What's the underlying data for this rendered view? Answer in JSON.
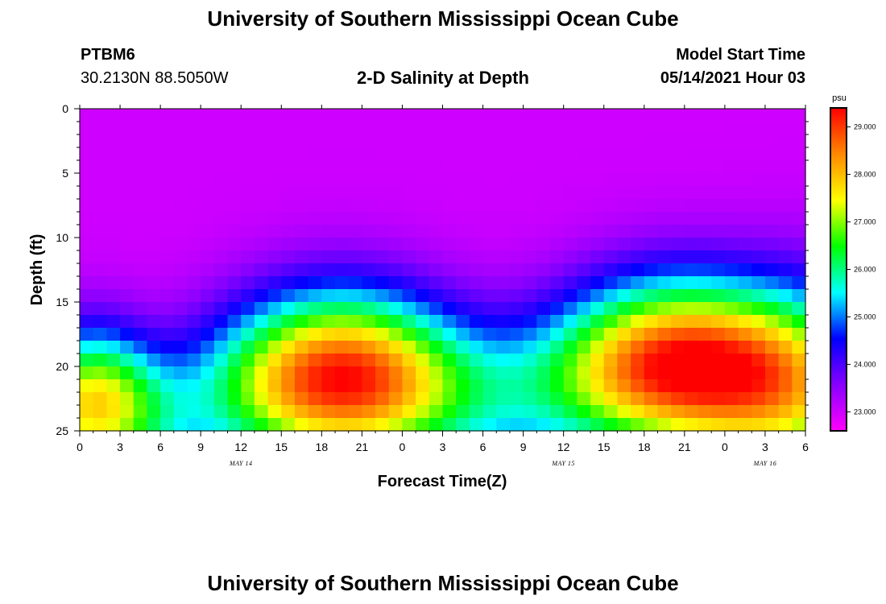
{
  "page": {
    "title_top": "University of Southern Mississippi Ocean Cube",
    "title_bottom": "University of Southern Mississippi Ocean Cube",
    "station_id": "PTBM6",
    "station_coords": "30.2130N  88.5050W",
    "plot_title": "2-D Salinity at Depth",
    "model_start_label": "Model Start Time",
    "model_start_value": "05/14/2021 Hour 03"
  },
  "chart_data": {
    "type": "heatmap",
    "title": "2-D Salinity at Depth",
    "xlabel": "Forecast Time(Z)",
    "ylabel": "Depth (ft)",
    "x_ticks": [
      "0",
      "3",
      "6",
      "9",
      "12",
      "15",
      "18",
      "21",
      "0",
      "3",
      "6",
      "9",
      "12",
      "15",
      "18",
      "21",
      "0",
      "3",
      "6"
    ],
    "x_range_hours": [
      0,
      54
    ],
    "date_labels": [
      {
        "text": "MAY 14",
        "hour": 12
      },
      {
        "text": "MAY 15",
        "hour": 36
      },
      {
        "text": "MAY 16",
        "hour": 51
      }
    ],
    "y_ticks": [
      "0",
      "5",
      "10",
      "15",
      "20",
      "25"
    ],
    "y_range": [
      0,
      25
    ],
    "y_inverted": true,
    "colorbar": {
      "unit": "psu",
      "range": [
        22.6,
        29.4
      ],
      "tick_values": [
        23.0,
        24.0,
        25.0,
        26.0,
        27.0,
        28.0,
        29.0
      ],
      "tick_labels": [
        "23.000",
        "24.000",
        "25.000",
        "26.000",
        "27.000",
        "28.000",
        "29.000"
      ],
      "colors": [
        "#ff00ff",
        "#8800ff",
        "#0000ff",
        "#00ffff",
        "#00ff00",
        "#ffff00",
        "#ff8800",
        "#ff0000"
      ]
    },
    "grid": {
      "cols": 54,
      "rows": 25,
      "base_value": 23.0,
      "features": [
        {
          "name": "plume-1",
          "center_hour": 19.5,
          "center_depth": 21,
          "peak": 6.4,
          "sigma_hour": 5.2,
          "sigma_depth": 4.6,
          "spread_per_ft": 0.28
        },
        {
          "name": "plume-2",
          "center_hour": 44.5,
          "center_depth": 20,
          "peak": 6.4,
          "sigma_hour": 5.4,
          "sigma_depth": 4.6,
          "spread_per_ft": 0.28
        },
        {
          "name": "edge-0",
          "center_hour": 1.0,
          "center_depth": 23,
          "peak": 4.6,
          "sigma_hour": 2.2,
          "sigma_depth": 4.0,
          "spread_per_ft": 0.5
        },
        {
          "name": "right-edge",
          "center_hour": 54,
          "center_depth": 22,
          "peak": 2.4,
          "sigma_hour": 4.0,
          "sigma_depth": 6.0,
          "spread_per_ft": 0.2
        }
      ]
    }
  }
}
